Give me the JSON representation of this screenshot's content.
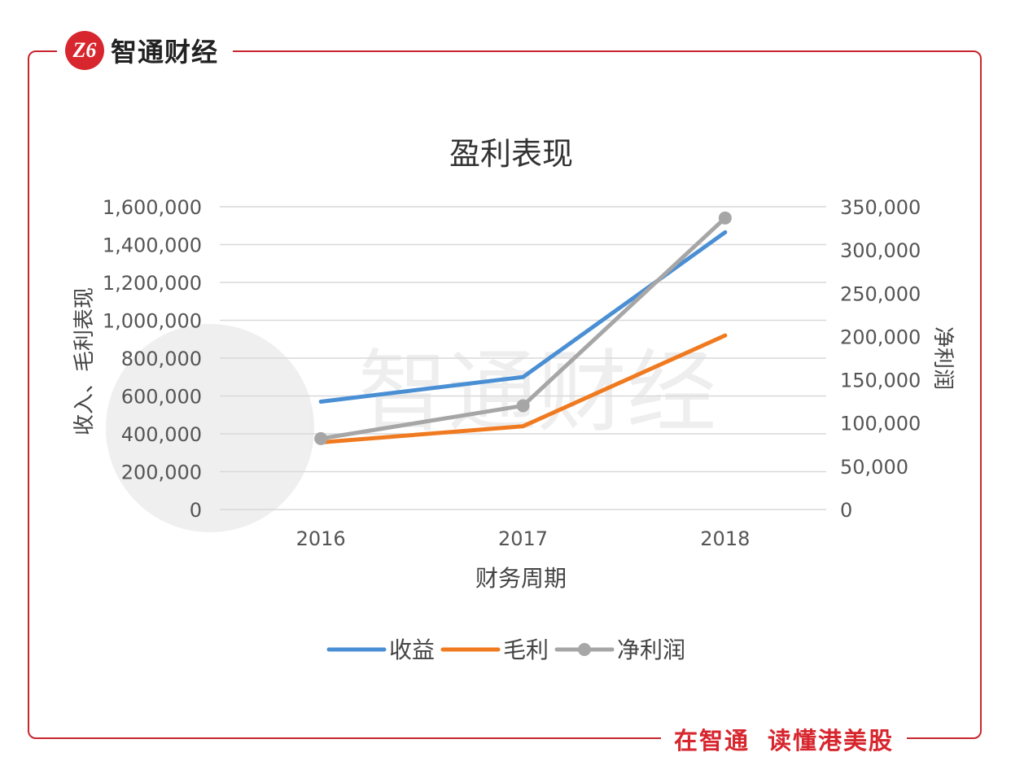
{
  "brand": {
    "logo_text": "Z6",
    "name": "智通财经",
    "slogan_part1": "在智通",
    "slogan_part2": "读懂港美股",
    "accent_color": "#d7262e"
  },
  "watermark": {
    "text": "智通财经"
  },
  "chart_data": {
    "type": "line",
    "title": "盈利表现",
    "xlabel": "财务周期",
    "ylabel_left": "收入、毛利表现",
    "ylabel_right": "净利润",
    "categories": [
      "2016",
      "2017",
      "2018"
    ],
    "left_axis": {
      "ylim": [
        0,
        1600000
      ],
      "ticks": [
        "0",
        "200,000",
        "400,000",
        "600,000",
        "800,000",
        "1,000,000",
        "1,200,000",
        "1,400,000",
        "1,600,000"
      ]
    },
    "right_axis": {
      "ylim": [
        0,
        350000
      ],
      "ticks": [
        "0",
        "50,000",
        "100,000",
        "150,000",
        "200,000",
        "250,000",
        "300,000",
        "350,000"
      ]
    },
    "series": [
      {
        "name": "收益",
        "axis": "left",
        "values": [
          570000,
          700000,
          1465000
        ],
        "color": "#4a8fd4",
        "markers": false
      },
      {
        "name": "毛利",
        "axis": "left",
        "values": [
          355000,
          440000,
          920000
        ],
        "color": "#f07a20",
        "markers": false
      },
      {
        "name": "净利润",
        "axis": "right",
        "values": [
          82000,
          120000,
          337000
        ],
        "color": "#a6a6a6",
        "markers": true
      }
    ],
    "grid": true,
    "legend": "bottom"
  }
}
